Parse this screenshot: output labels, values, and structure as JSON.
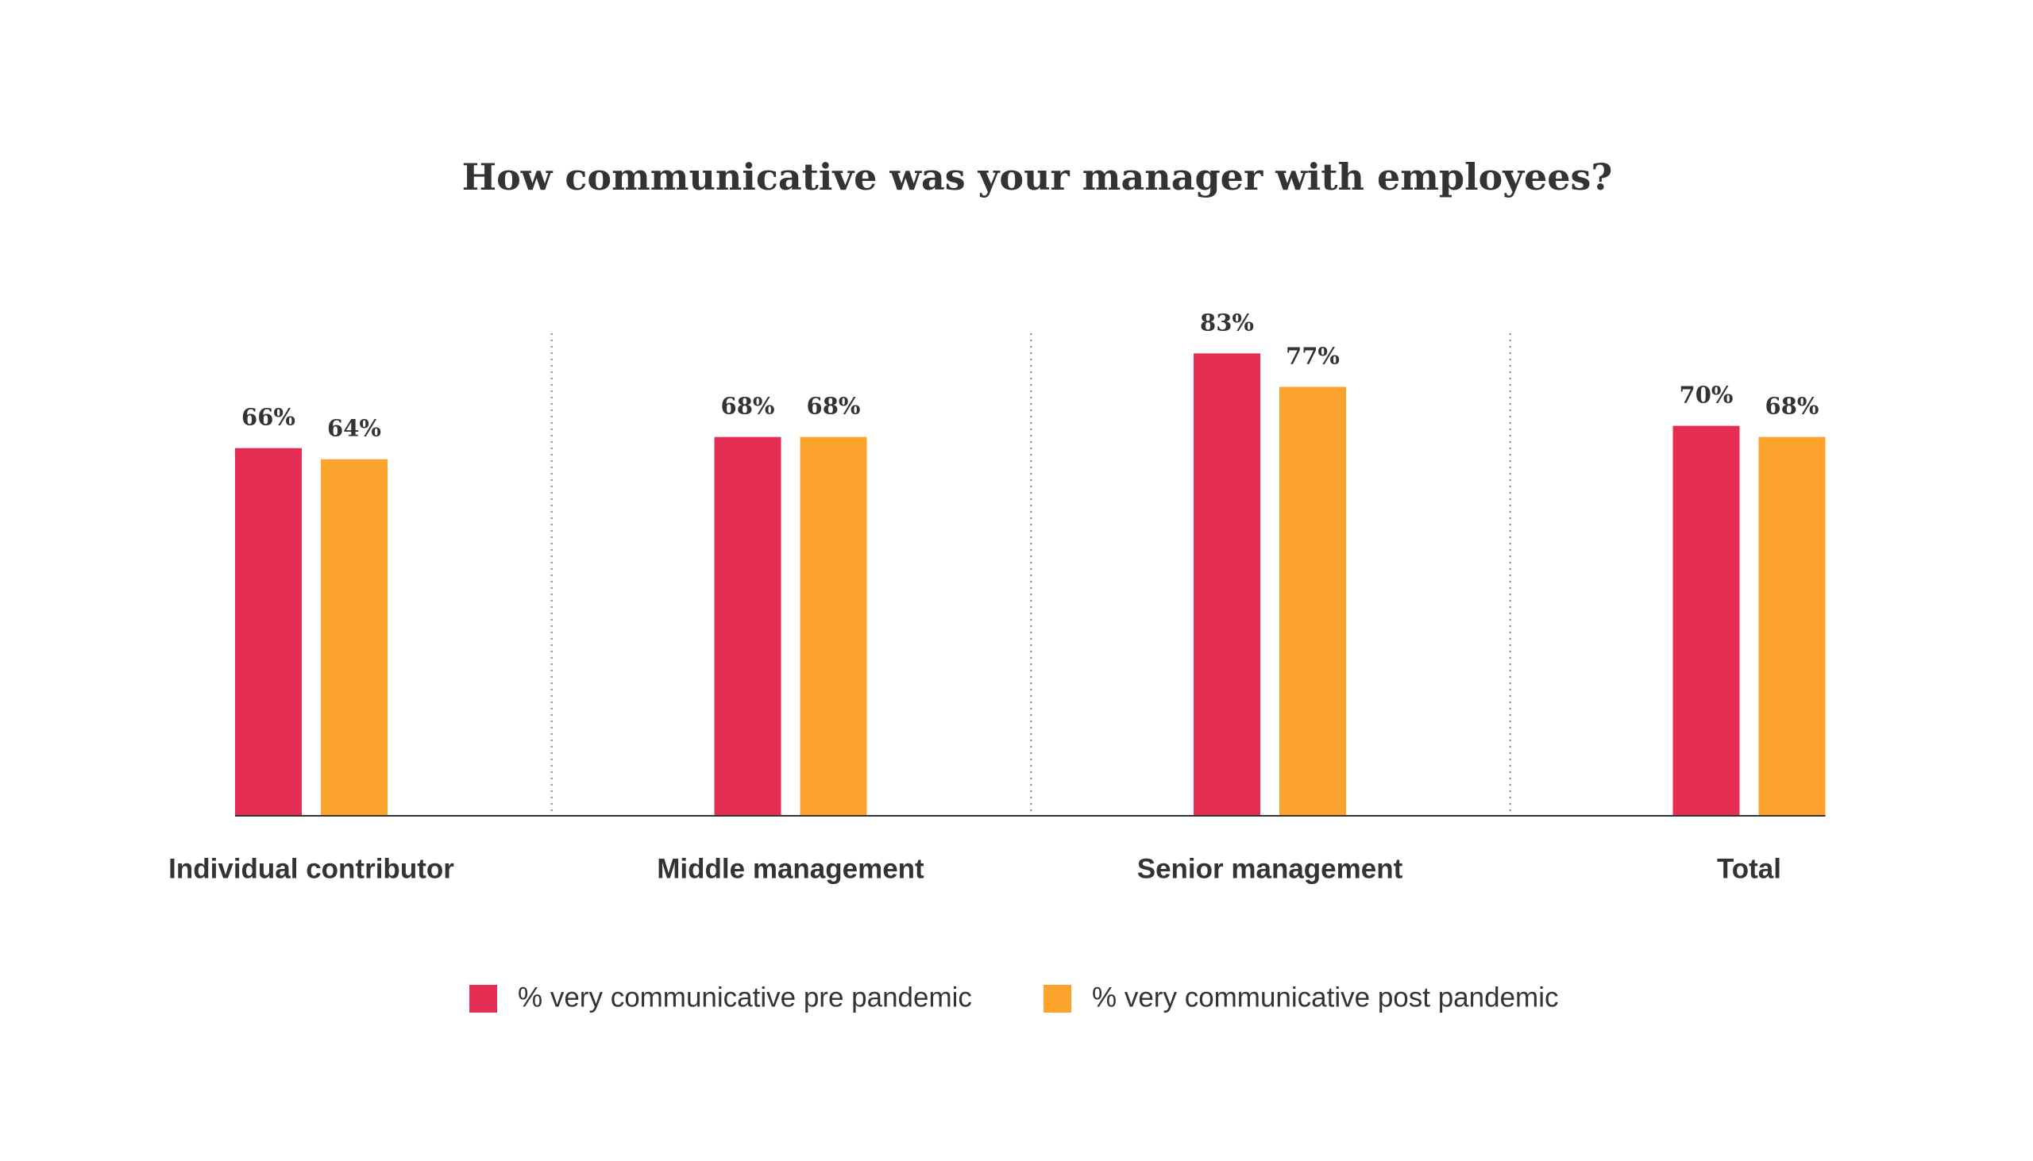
{
  "chart_data": {
    "type": "bar",
    "title": "How communicative was your manager with employees?",
    "categories": [
      "Individual contributor",
      "Middle management",
      "Senior management",
      "Total"
    ],
    "series": [
      {
        "name": "% very communicative pre pandemic",
        "color": "#e52d53",
        "values": [
          66,
          68,
          83,
          70
        ],
        "value_labels": [
          "66%",
          "68%",
          "83%",
          "70%"
        ]
      },
      {
        "name": "% very communicative post pandemic",
        "color": "#fca32d",
        "values": [
          64,
          68,
          77,
          68
        ],
        "value_labels": [
          "64%",
          "68%",
          "77%",
          "68%"
        ]
      }
    ],
    "ylim": [
      0,
      100
    ]
  }
}
